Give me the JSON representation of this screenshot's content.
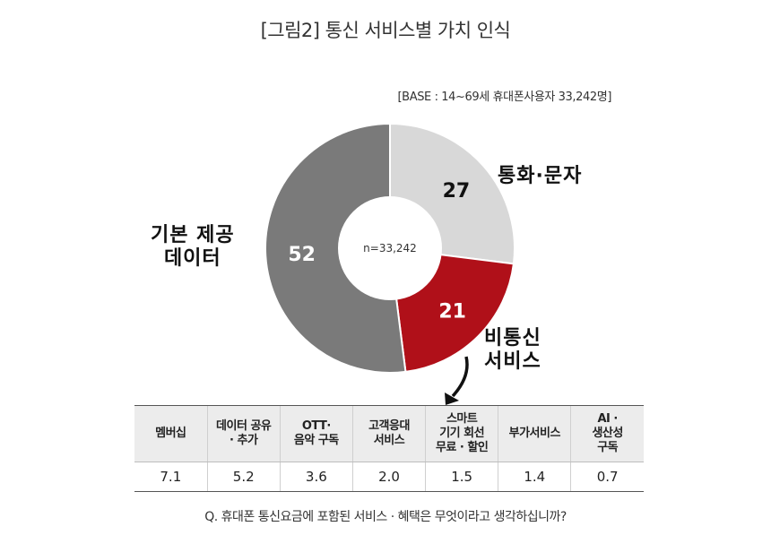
{
  "title": "[그림2] 통신 서비스별 가치 인식",
  "base_note": "[BASE : 14~69세 휴대폰사용자 33,242명]",
  "colors": {
    "call_sms": "#d8d8d8",
    "non_telecom": "#b01019",
    "basic_data": "#7a7a7a",
    "arrow": "#111111"
  },
  "chart_data": [
    {
      "type": "pie",
      "title": "",
      "center_label": "n=33,242",
      "slices": [
        {
          "label": "통화·문자",
          "value": 27,
          "color": "#d8d8d8"
        },
        {
          "label": "비통신 서비스",
          "value": 21,
          "color": "#b01019"
        },
        {
          "label": "기본 제공 데이터",
          "value": 52,
          "color": "#7a7a7a"
        }
      ],
      "labels": {
        "call_sms": "통화·문자",
        "basic_data_line1": "기본 제공",
        "basic_data_line2": "데이터",
        "non_telecom_line1": "비통신",
        "non_telecom_line2": "서비스"
      }
    },
    {
      "type": "table",
      "headers": [
        "멤버십",
        "데이터 공유\n· 추가",
        "OTT·\n음악 구독",
        "고객응대\n서비스",
        "스마트\n기기 회선\n무료 · 할인",
        "부가서비스",
        "AI ·\n생산성\n구독"
      ],
      "values": [
        "7.1",
        "5.2",
        "3.6",
        "2.0",
        "1.5",
        "1.4",
        "0.7"
      ]
    }
  ],
  "question": "Q. 휴대폰 통신요금에 포함된 서비스 · 혜택은 무엇이라고 생각하십니까?"
}
